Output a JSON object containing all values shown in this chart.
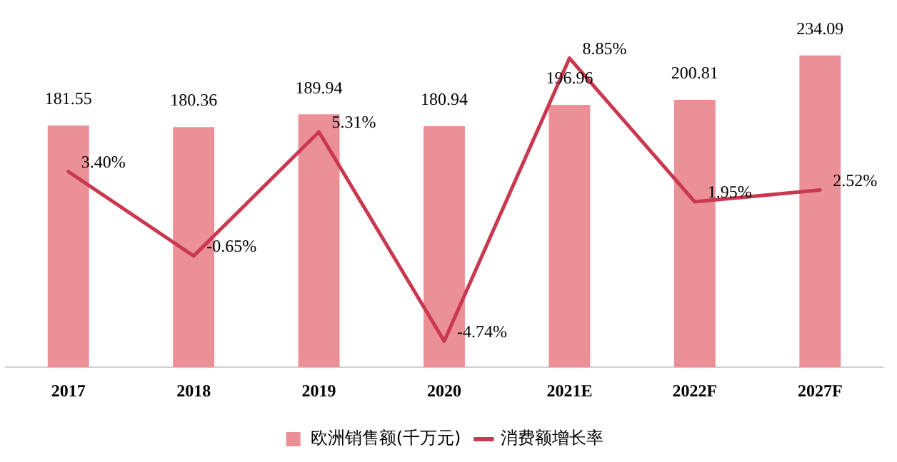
{
  "chart_data": {
    "type": "bar",
    "categories": [
      "2017",
      "2018",
      "2019",
      "2020",
      "2021E",
      "2022F",
      "2027F"
    ],
    "series": [
      {
        "name": "欧洲销售额(千万元)",
        "color": "#eb9096",
        "values": [
          181.55,
          180.36,
          189.94,
          180.94,
          196.96,
          200.81,
          234.09
        ],
        "value_labels": [
          "181.55",
          "180.36",
          "189.94",
          "180.94",
          "196.96",
          "200.81",
          "234.09"
        ]
      },
      {
        "name": "消费额增长率",
        "type": "line",
        "axis": "y2",
        "color": "#c9384f",
        "values": [
          3.4,
          -0.65,
          5.31,
          -4.74,
          8.85,
          1.95,
          2.52
        ],
        "value_labels": [
          "3.40%",
          "-0.65%",
          "5.31%",
          "-4.74%",
          "8.85%",
          "1.95%",
          "2.52%"
        ]
      }
    ],
    "tick_labels": "x",
    "grid": false,
    "legend": "bottom",
    "marker": "none",
    "line_style": "solid"
  }
}
